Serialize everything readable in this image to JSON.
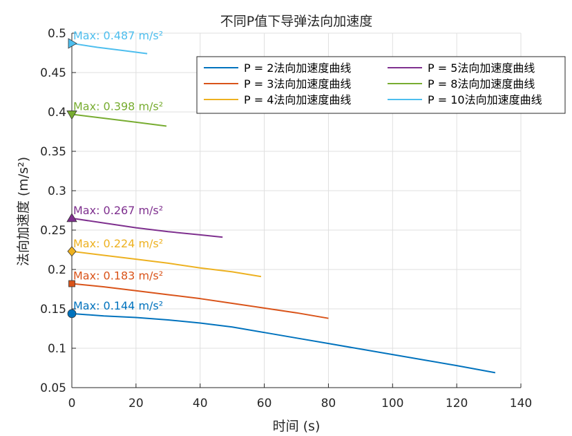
{
  "chart_data": {
    "type": "line",
    "title": "不同P值下导弹法向加速度",
    "xlabel": "时间 (s)",
    "ylabel": "法向加速度 (m/s²)",
    "xlim": [
      0,
      140
    ],
    "ylim": [
      0.05,
      0.5
    ],
    "xticks": [
      "0",
      "20",
      "40",
      "60",
      "80",
      "100",
      "120",
      "140"
    ],
    "yticks": [
      "0.05",
      "0.1",
      "0.15",
      "0.2",
      "0.25",
      "0.3",
      "0.35",
      "0.4",
      "0.45",
      "0.5"
    ],
    "grid": true,
    "legend_position": "top-right",
    "series": [
      {
        "name": "P = 2法向加速度曲线",
        "color": "#0072BD",
        "x": [
          0,
          10,
          20,
          30,
          40,
          50,
          60,
          70,
          80,
          90,
          100,
          110,
          120,
          132
        ],
        "y": [
          0.144,
          0.141,
          0.139,
          0.136,
          0.132,
          0.127,
          0.12,
          0.113,
          0.106,
          0.099,
          0.092,
          0.085,
          0.078,
          0.069
        ],
        "marker": "circle",
        "annotation": "Max: 0.144 m/s²"
      },
      {
        "name": "P = 3法向加速度曲线",
        "color": "#D95319",
        "x": [
          0,
          10,
          20,
          30,
          40,
          50,
          60,
          70,
          80
        ],
        "y": [
          0.182,
          0.178,
          0.173,
          0.168,
          0.163,
          0.157,
          0.151,
          0.145,
          0.138
        ],
        "marker": "square",
        "annotation": "Max: 0.183 m/s²"
      },
      {
        "name": "P = 4法向加速度曲线",
        "color": "#EDB120",
        "x": [
          0,
          10,
          20,
          30,
          40,
          50,
          59
        ],
        "y": [
          0.223,
          0.218,
          0.213,
          0.208,
          0.202,
          0.197,
          0.191
        ],
        "marker": "diamond",
        "annotation": "Max: 0.224 m/s²"
      },
      {
        "name": "P = 5法向加速度曲线",
        "color": "#7E2F8E",
        "x": [
          0,
          10,
          20,
          30,
          40,
          47
        ],
        "y": [
          0.265,
          0.259,
          0.253,
          0.248,
          0.244,
          0.241
        ],
        "marker": "triangle-up",
        "annotation": "Max: 0.267 m/s²"
      },
      {
        "name": "P = 8法向加速度曲线",
        "color": "#77AC30",
        "x": [
          0,
          10,
          20,
          29.5
        ],
        "y": [
          0.397,
          0.392,
          0.387,
          0.382
        ],
        "marker": "triangle-down",
        "annotation": "Max: 0.398 m/s²"
      },
      {
        "name": "P = 10法向加速度曲线",
        "color": "#4DBEEE",
        "x": [
          0,
          8,
          16,
          23.5
        ],
        "y": [
          0.487,
          0.482,
          0.478,
          0.474
        ],
        "marker": "triangle-right",
        "annotation": "Max: 0.487 m/s²"
      }
    ]
  }
}
